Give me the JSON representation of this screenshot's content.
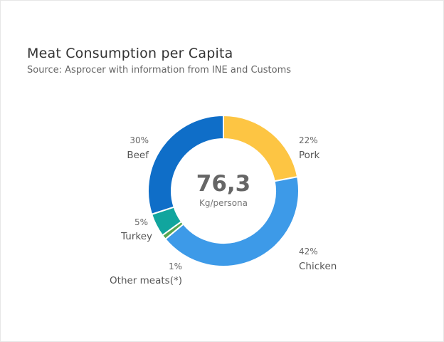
{
  "title": "Meat Consumption per Capita",
  "subtitle": "Source: Asprocer with information from INE and Customs",
  "center": {
    "value": "76,3",
    "unit": "Kg/persona"
  },
  "chart_data": {
    "type": "pie",
    "title": "Meat Consumption per Capita",
    "subtitle": "Source: Asprocer with information from INE and Customs",
    "donut": true,
    "total_label": "76,3",
    "total_unit": "Kg/persona",
    "categories": [
      "Pork",
      "Chicken",
      "Other meats(*)",
      "Turkey",
      "Beef"
    ],
    "values": [
      22,
      42,
      1,
      5,
      30
    ],
    "labels": [
      "22%",
      "42%",
      "1%",
      "5%",
      "30%"
    ],
    "colors": [
      "#fdc543",
      "#3d9ae8",
      "#56a64f",
      "#11a59e",
      "#0f6ec8"
    ]
  }
}
